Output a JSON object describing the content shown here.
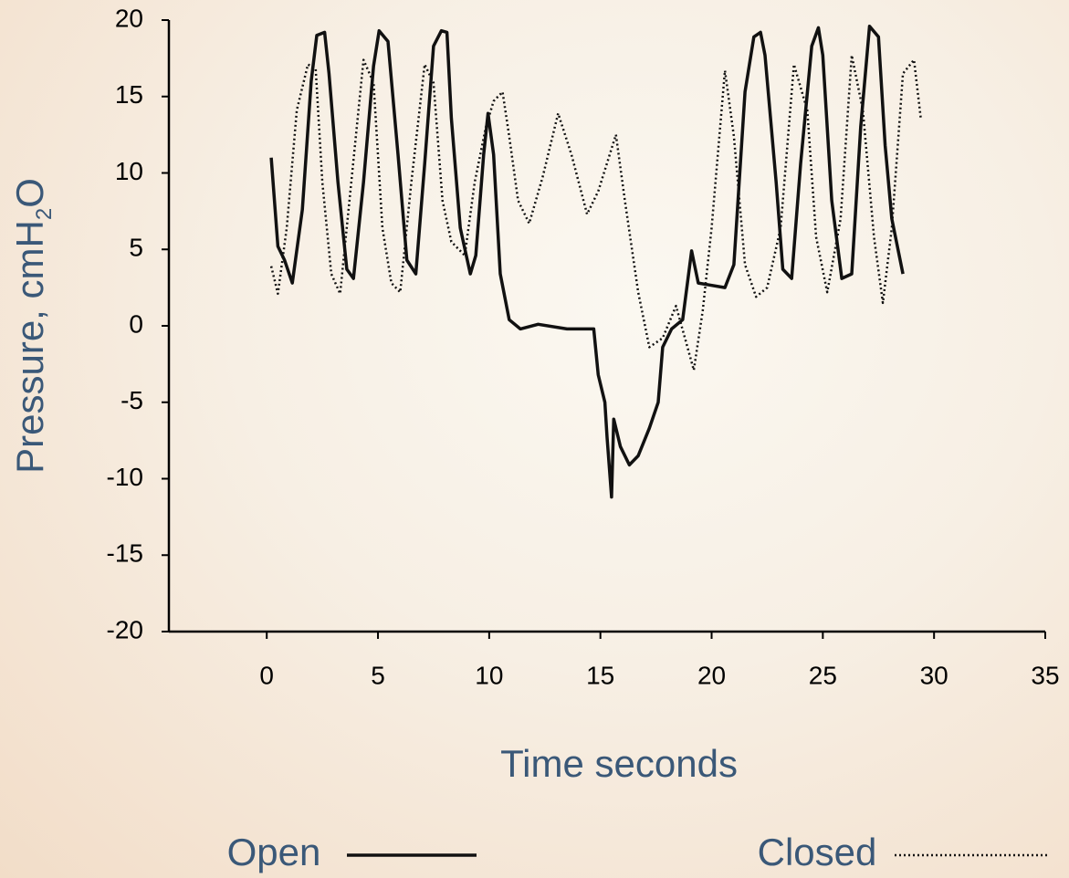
{
  "chart_data": {
    "type": "line",
    "xlabel": "Time seconds",
    "ylabel": "Pressure, cmH2O",
    "xlim": [
      -4.4,
      35
    ],
    "xticks": [
      0,
      5,
      10,
      15,
      20,
      25,
      30,
      35
    ],
    "ylim": [
      -20,
      20
    ],
    "yticks": [
      -20,
      -15,
      -10,
      -5,
      0,
      5,
      10,
      15,
      20
    ],
    "grid": false,
    "legend": "bottom",
    "series": [
      {
        "name": "Open",
        "color": "#111111",
        "line_style": "solid",
        "x": [
          0.2,
          0.5,
          0.8,
          1.15,
          1.6,
          2.0,
          2.25,
          2.6,
          2.8,
          3.2,
          3.6,
          3.9,
          4.35,
          4.8,
          5.05,
          5.45,
          5.9,
          6.3,
          6.7,
          7.1,
          7.5,
          7.85,
          8.1,
          8.3,
          8.7,
          9.15,
          9.4,
          9.75,
          9.95,
          10.2,
          10.5,
          10.9,
          11.4,
          12.2,
          13.5,
          14.7,
          14.9,
          15.2,
          15.3,
          15.5,
          15.6,
          15.9,
          16.3,
          16.7,
          17.2,
          17.6,
          17.8,
          18.2,
          18.7,
          19.1,
          19.4,
          19.8,
          20.6,
          21.0,
          21.5,
          21.9,
          22.2,
          22.4,
          22.9,
          23.2,
          23.6,
          24.0,
          24.5,
          24.8,
          25.0,
          25.4,
          25.85,
          26.3,
          26.7,
          27.1,
          27.5,
          27.8,
          28.1,
          28.6
        ],
        "values": [
          11,
          5.2,
          4.3,
          2.8,
          7.6,
          16,
          19,
          19.2,
          16.5,
          9.4,
          3.7,
          3.1,
          9.4,
          17,
          19.3,
          18.6,
          11.2,
          4.3,
          3.4,
          10.6,
          18.3,
          19.3,
          19.2,
          13.6,
          6.4,
          3.4,
          4.6,
          11.2,
          13.9,
          11.2,
          3.4,
          0.4,
          -0.2,
          0.1,
          -0.2,
          -0.2,
          -3.2,
          -5,
          -7.3,
          -11.2,
          -6.1,
          -7.9,
          -9.1,
          -8.5,
          -6.7,
          -5,
          -1.4,
          -0.2,
          0.4,
          4.9,
          2.8,
          2.7,
          2.5,
          4,
          15.3,
          18.9,
          19.2,
          17.7,
          9.4,
          3.7,
          3.1,
          10.6,
          18.3,
          19.5,
          17.7,
          8.2,
          3.1,
          3.4,
          13,
          19.6,
          18.9,
          11.8,
          7,
          3.4
        ]
      },
      {
        "name": "Closed",
        "color": "#111111",
        "line_style": "dotted",
        "x": [
          0.2,
          0.5,
          0.9,
          1.35,
          1.85,
          2.2,
          2.5,
          2.9,
          3.3,
          3.8,
          4.35,
          4.8,
          5.2,
          5.6,
          6.0,
          6.5,
          7.1,
          7.5,
          7.9,
          8.3,
          8.9,
          9.35,
          9.85,
          10.2,
          10.6,
          10.9,
          11.3,
          11.8,
          12.4,
          13.1,
          13.7,
          14.4,
          14.9,
          15.7,
          16.1,
          16.7,
          17.2,
          17.8,
          18.4,
          18.8,
          19.2,
          19.6,
          20.0,
          20.6,
          21.0,
          21.5,
          22.0,
          22.5,
          23.1,
          23.7,
          24.3,
          24.7,
          25.2,
          25.8,
          26.3,
          26.8,
          27.3,
          27.7,
          28.1,
          28.6,
          29.1,
          29.4
        ],
        "values": [
          3.9,
          2.1,
          6.4,
          14.1,
          17.1,
          16.8,
          9.4,
          3.4,
          2.1,
          9.4,
          17.4,
          15.9,
          6.4,
          2.8,
          2.2,
          9.4,
          17.1,
          15.9,
          8.2,
          5.5,
          4.6,
          9.4,
          13,
          14.7,
          15.3,
          12.4,
          8.2,
          6.7,
          9.7,
          13.9,
          11.2,
          7.3,
          8.8,
          12.5,
          8.2,
          2.2,
          -1.4,
          -0.8,
          1.3,
          -0.8,
          -2.9,
          1,
          6.4,
          16.7,
          12.4,
          4,
          1.9,
          2.5,
          6.4,
          17.1,
          14.1,
          5.8,
          2.2,
          7,
          17.7,
          14.1,
          5.8,
          1.5,
          6.4,
          16.5,
          17.4,
          13.6
        ]
      }
    ]
  }
}
